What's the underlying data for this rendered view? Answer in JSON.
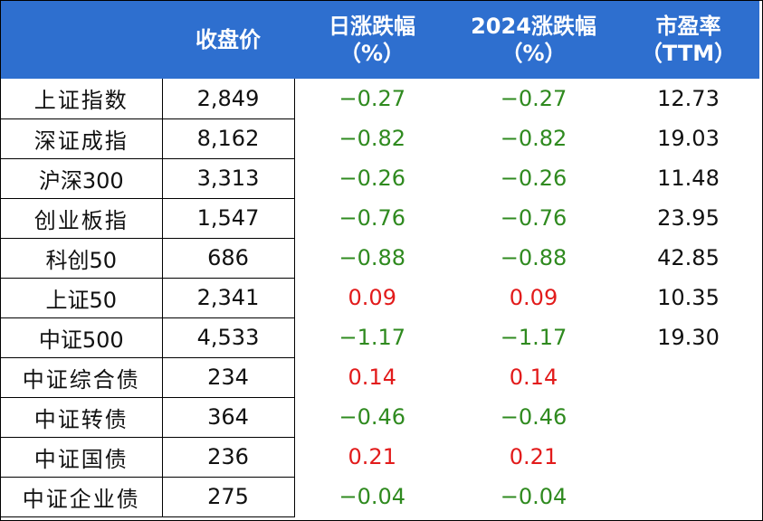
{
  "headers": [
    {
      "line1": "",
      "line2": ""
    },
    {
      "line1": "收盘价",
      "line2": ""
    },
    {
      "line1": "日涨跌幅",
      "line2": "（%）"
    },
    {
      "line1": "2024涨跌幅",
      "line2": "（%）"
    },
    {
      "line1": "市盈率",
      "line2": "（TTM）"
    }
  ],
  "rows": [
    {
      "name": "上证指数",
      "close": "2,849",
      "daily": "−0.27",
      "ytd": "−0.27",
      "pe": "12.73"
    },
    {
      "name": "深证成指",
      "close": "8,162",
      "daily": "−0.82",
      "ytd": "−0.82",
      "pe": "19.03"
    },
    {
      "name": "沪深300",
      "close": "3,313",
      "daily": "−0.26",
      "ytd": "−0.26",
      "pe": "11.48"
    },
    {
      "name": "创业板指",
      "close": "1,547",
      "daily": "−0.76",
      "ytd": "−0.76",
      "pe": "23.95"
    },
    {
      "name": "科创50",
      "close": "686",
      "daily": "−0.88",
      "ytd": "−0.88",
      "pe": "42.85"
    },
    {
      "name": "上证50",
      "close": "2,341",
      "daily": "0.09",
      "ytd": "0.09",
      "pe": "10.35"
    },
    {
      "name": "中证500",
      "close": "4,533",
      "daily": "−1.17",
      "ytd": "−1.17",
      "pe": "19.30"
    },
    {
      "name": "中证综合债",
      "close": "234",
      "daily": "0.14",
      "ytd": "0.14",
      "pe": ""
    },
    {
      "name": "中证转债",
      "close": "364",
      "daily": "−0.46",
      "ytd": "−0.46",
      "pe": ""
    },
    {
      "name": "中证国债",
      "close": "236",
      "daily": "0.21",
      "ytd": "0.21",
      "pe": ""
    },
    {
      "name": "中证企业债",
      "close": "275",
      "daily": "−0.04",
      "ytd": "−0.04",
      "pe": ""
    }
  ],
  "colors": {
    "header_bg": "#2e6fcf",
    "negative": "#2f8a1f",
    "positive": "#e21b1b"
  }
}
